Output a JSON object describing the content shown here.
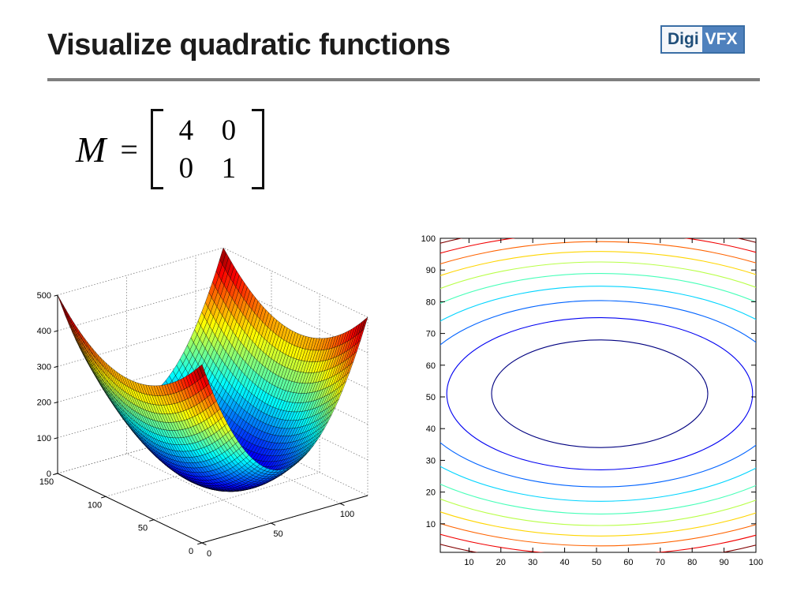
{
  "slide": {
    "title": "Visualize quadratic functions",
    "divider_color": "#7f7f7f",
    "background": "#ffffff",
    "logo": {
      "digi": "Digi",
      "vfx": "VFX",
      "border_color": "#3a6ea5",
      "digi_color": "#1f4e79",
      "vfx_bg": "#4f81bd"
    }
  },
  "matrix": {
    "symbol": "M",
    "equals": "=",
    "rows": [
      [
        "4",
        "0"
      ],
      [
        "0",
        "1"
      ]
    ]
  },
  "chart_data": [
    {
      "type": "surface",
      "title": "",
      "description": "MATLAB-style 3D mesh surface of the quadratic form f(v) = v'Mv with M=[[4,0],[0,1]] (elliptic paraboloid bowl), jet colormap, dotted grid box",
      "x_ticks": [
        0,
        50,
        100
      ],
      "x_range": [
        0,
        120
      ],
      "y_ticks": [
        0,
        50,
        100,
        150
      ],
      "y_range": [
        0,
        150
      ],
      "z_ticks": [
        0,
        100,
        200,
        300,
        400,
        500
      ],
      "z_range": [
        0,
        500
      ],
      "center": [
        60,
        75
      ],
      "coefficients": {
        "x2": 4,
        "y2": 1
      },
      "scale": 40,
      "colormap": "jet",
      "grid": true,
      "view": {
        "azimuth": -37.5,
        "elevation": 30
      }
    },
    {
      "type": "contour",
      "title": "",
      "description": "MATLAB-style contour plot of the same quadratic form: nested ellipses (wide in x, 2:1 axis ratio) centered near (51,51), colored blue (low) to dark red (high) with jet colormap",
      "x_ticks": [
        10,
        20,
        30,
        40,
        50,
        60,
        70,
        80,
        90,
        100
      ],
      "y_ticks": [
        10,
        20,
        30,
        40,
        50,
        60,
        70,
        80,
        90,
        100
      ],
      "x_range": [
        1,
        100
      ],
      "y_range": [
        1,
        100
      ],
      "center": [
        51,
        51
      ],
      "level_step": 1150,
      "num_levels": 10,
      "ellipse_axis_ratio": 2,
      "colormap": "jet",
      "grid": false
    }
  ]
}
